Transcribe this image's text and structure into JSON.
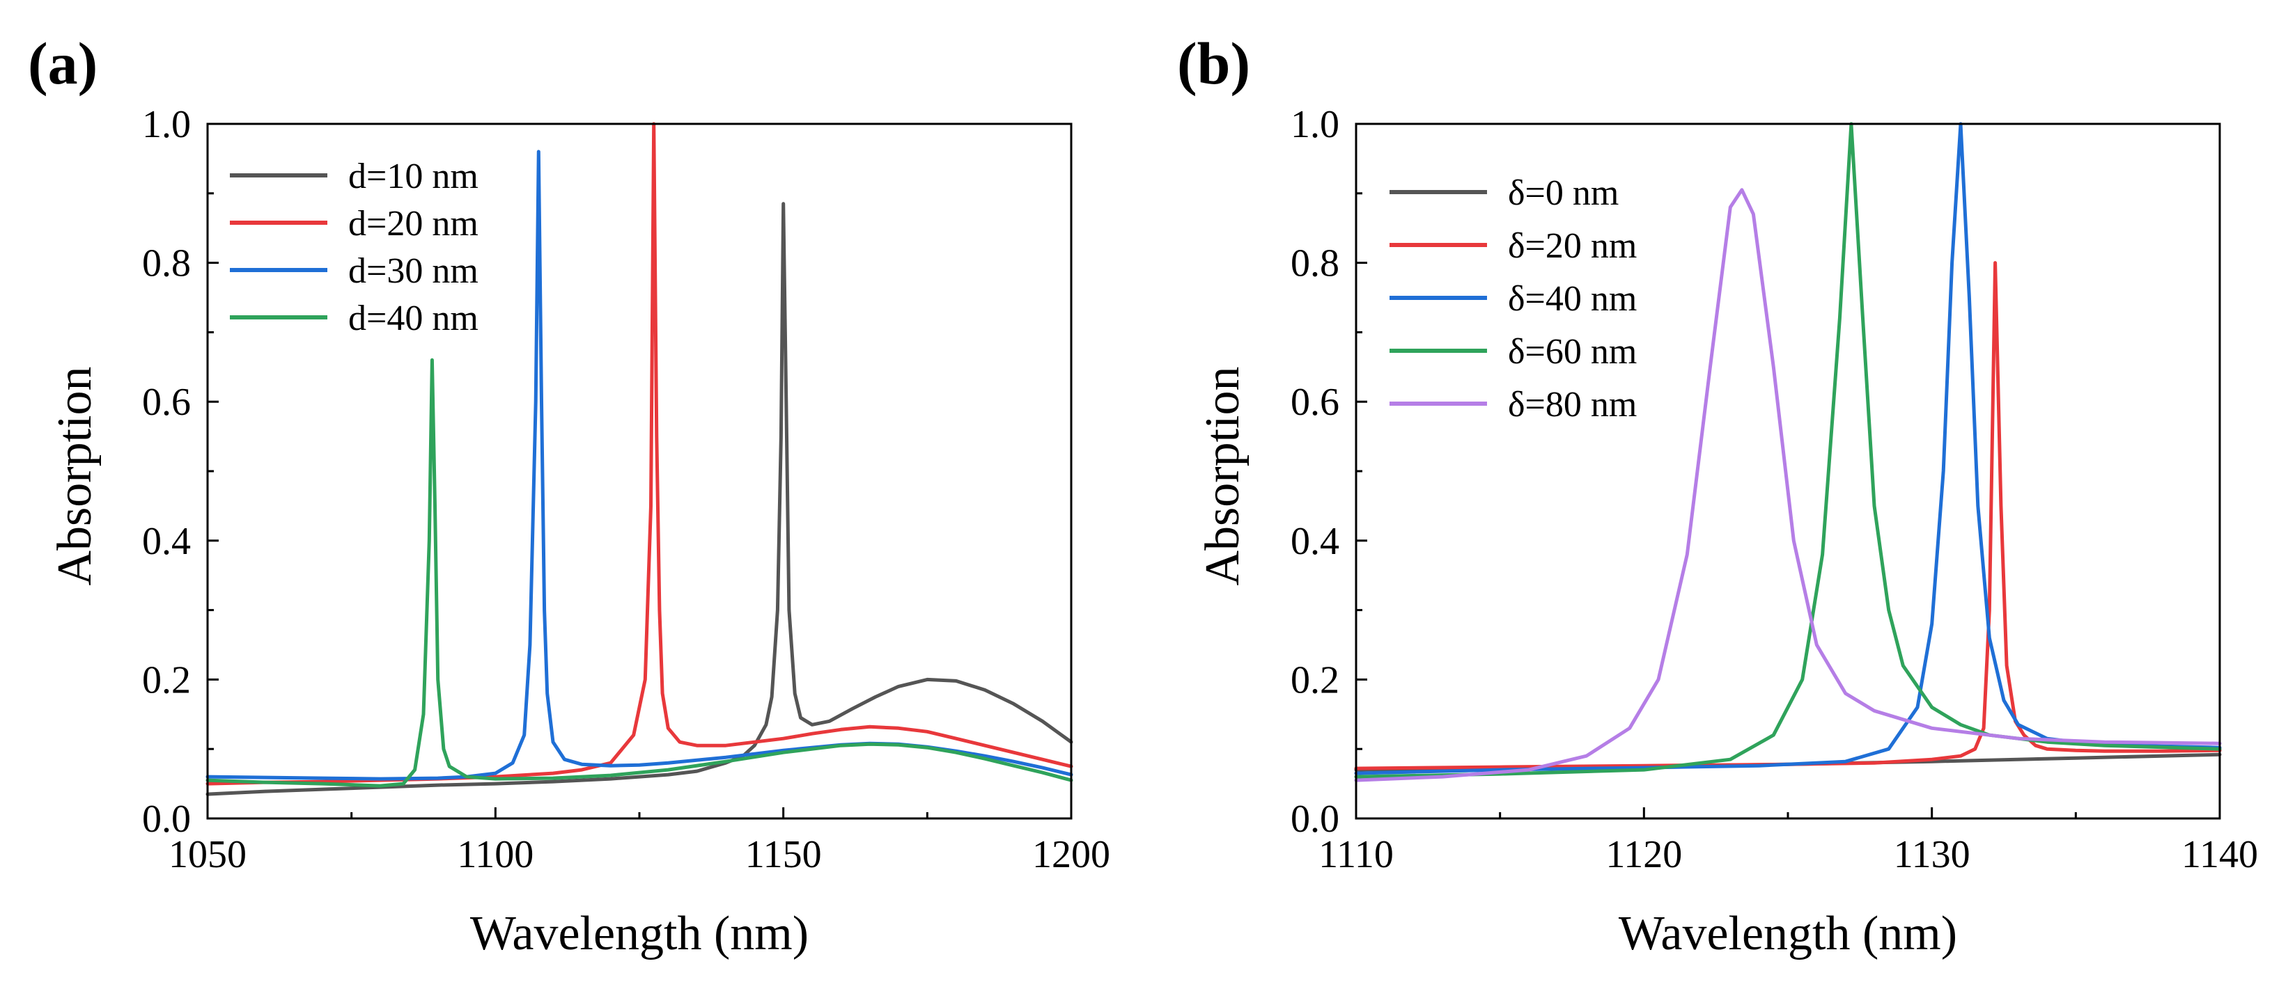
{
  "chart_data": [
    {
      "type": "line",
      "panel_label": "(a)",
      "xlabel": "Wavelength (nm)",
      "ylabel": "Absorption",
      "xlim": [
        1050,
        1200
      ],
      "ylim": [
        0,
        1.0
      ],
      "xticks": [
        "1050",
        "1100",
        "1150",
        "1200"
      ],
      "yticks": [
        "0.0",
        "0.2",
        "0.4",
        "0.6",
        "0.8",
        "1.0"
      ],
      "legend_position": "top-left",
      "series": [
        {
          "name": "d=10 nm",
          "color": "#555555",
          "x": [
            1050,
            1060,
            1070,
            1080,
            1090,
            1100,
            1110,
            1120,
            1130,
            1135,
            1140,
            1143,
            1145,
            1147,
            1148,
            1149,
            1149.6,
            1150,
            1150.5,
            1151,
            1152,
            1153,
            1155,
            1158,
            1162,
            1166,
            1170,
            1175,
            1180,
            1185,
            1190,
            1195,
            1200
          ],
          "y": [
            0.035,
            0.039,
            0.042,
            0.045,
            0.048,
            0.05,
            0.053,
            0.057,
            0.063,
            0.068,
            0.08,
            0.09,
            0.105,
            0.135,
            0.175,
            0.3,
            0.55,
            0.885,
            0.6,
            0.3,
            0.18,
            0.145,
            0.135,
            0.14,
            0.158,
            0.175,
            0.19,
            0.2,
            0.198,
            0.185,
            0.165,
            0.14,
            0.11
          ]
        },
        {
          "name": "d=20 nm",
          "color": "#e8383b",
          "x": [
            1050,
            1060,
            1070,
            1080,
            1090,
            1100,
            1110,
            1115,
            1120,
            1124,
            1126,
            1127,
            1127.5,
            1128,
            1128.5,
            1129,
            1130,
            1132,
            1135,
            1140,
            1145,
            1150,
            1155,
            1160,
            1165,
            1170,
            1175,
            1180,
            1185,
            1190,
            1195,
            1200
          ],
          "y": [
            0.05,
            0.052,
            0.053,
            0.055,
            0.057,
            0.06,
            0.065,
            0.07,
            0.08,
            0.12,
            0.2,
            0.45,
            1.0,
            0.55,
            0.3,
            0.18,
            0.13,
            0.11,
            0.105,
            0.105,
            0.11,
            0.115,
            0.122,
            0.128,
            0.132,
            0.13,
            0.125,
            0.115,
            0.105,
            0.095,
            0.085,
            0.075
          ]
        },
        {
          "name": "d=30 nm",
          "color": "#1f6fd6",
          "x": [
            1050,
            1060,
            1070,
            1080,
            1090,
            1095,
            1100,
            1103,
            1105,
            1106,
            1107,
            1107.5,
            1108,
            1108.5,
            1109,
            1110,
            1112,
            1115,
            1120,
            1125,
            1130,
            1140,
            1150,
            1160,
            1165,
            1170,
            1175,
            1180,
            1185,
            1190,
            1195,
            1200
          ],
          "y": [
            0.06,
            0.059,
            0.058,
            0.057,
            0.058,
            0.06,
            0.065,
            0.08,
            0.12,
            0.25,
            0.6,
            0.96,
            0.6,
            0.3,
            0.18,
            0.11,
            0.085,
            0.078,
            0.076,
            0.077,
            0.08,
            0.088,
            0.098,
            0.106,
            0.108,
            0.107,
            0.103,
            0.097,
            0.09,
            0.082,
            0.073,
            0.063
          ]
        },
        {
          "name": "d=40 nm",
          "color": "#2fa35b",
          "x": [
            1050,
            1060,
            1070,
            1080,
            1084,
            1086,
            1087.5,
            1088.5,
            1089,
            1089.5,
            1090,
            1091,
            1092,
            1095,
            1100,
            1110,
            1120,
            1130,
            1140,
            1150,
            1160,
            1165,
            1170,
            1175,
            1180,
            1185,
            1190,
            1195,
            1200
          ],
          "y": [
            0.055,
            0.052,
            0.05,
            0.047,
            0.05,
            0.07,
            0.15,
            0.4,
            0.66,
            0.45,
            0.2,
            0.1,
            0.075,
            0.06,
            0.057,
            0.058,
            0.062,
            0.07,
            0.082,
            0.095,
            0.105,
            0.107,
            0.106,
            0.102,
            0.095,
            0.086,
            0.076,
            0.066,
            0.055
          ]
        }
      ]
    },
    {
      "type": "line",
      "panel_label": "(b)",
      "xlabel": "Wavelength (nm)",
      "ylabel": "Absorption",
      "xlim": [
        1110,
        1140
      ],
      "ylim": [
        0,
        1.0
      ],
      "xticks": [
        "1110",
        "1120",
        "1130",
        "1140"
      ],
      "yticks": [
        "0.0",
        "0.2",
        "0.4",
        "0.6",
        "0.8",
        "1.0"
      ],
      "legend_position": "top-left",
      "series": [
        {
          "name": "δ=0 nm",
          "color": "#555555",
          "x": [
            1110,
            1115,
            1120,
            1125,
            1130,
            1135,
            1140
          ],
          "y": [
            0.07,
            0.073,
            0.075,
            0.078,
            0.082,
            0.087,
            0.092
          ]
        },
        {
          "name": "δ=20 nm",
          "color": "#e8383b",
          "x": [
            1110,
            1115,
            1120,
            1125,
            1128,
            1130,
            1131,
            1131.5,
            1131.8,
            1132,
            1132.2,
            1132.4,
            1132.6,
            1132.9,
            1133.2,
            1133.6,
            1134,
            1135,
            1136,
            1138,
            1140
          ],
          "y": [
            0.072,
            0.074,
            0.076,
            0.078,
            0.08,
            0.085,
            0.09,
            0.1,
            0.13,
            0.3,
            0.8,
            0.45,
            0.22,
            0.14,
            0.12,
            0.105,
            0.1,
            0.098,
            0.097,
            0.097,
            0.098
          ]
        },
        {
          "name": "δ=40 nm",
          "color": "#1f6fd6",
          "x": [
            1110,
            1115,
            1120,
            1124,
            1127,
            1128.5,
            1129.5,
            1130,
            1130.4,
            1130.7,
            1131,
            1131.3,
            1131.6,
            1132,
            1132.5,
            1133,
            1134,
            1135,
            1137,
            1140
          ],
          "y": [
            0.065,
            0.07,
            0.073,
            0.076,
            0.082,
            0.1,
            0.16,
            0.28,
            0.5,
            0.8,
            1.0,
            0.75,
            0.45,
            0.26,
            0.17,
            0.135,
            0.115,
            0.11,
            0.105,
            0.102
          ]
        },
        {
          "name": "δ=60 nm",
          "color": "#2fa35b",
          "x": [
            1110,
            1115,
            1120,
            1123,
            1124.5,
            1125.5,
            1126.2,
            1126.8,
            1127.2,
            1127.6,
            1128,
            1128.5,
            1129,
            1130,
            1131,
            1132,
            1134,
            1136,
            1140
          ],
          "y": [
            0.06,
            0.064,
            0.07,
            0.085,
            0.12,
            0.2,
            0.38,
            0.72,
            1.0,
            0.72,
            0.45,
            0.3,
            0.22,
            0.16,
            0.135,
            0.12,
            0.11,
            0.105,
            0.1
          ]
        },
        {
          "name": "δ=80 nm",
          "color": "#b57ee6",
          "x": [
            1110,
            1113,
            1116,
            1118,
            1119.5,
            1120.5,
            1121.5,
            1122.3,
            1123,
            1123.4,
            1123.8,
            1124.5,
            1125.2,
            1126,
            1127,
            1128,
            1130,
            1133,
            1136,
            1140
          ],
          "y": [
            0.055,
            0.06,
            0.07,
            0.09,
            0.13,
            0.2,
            0.38,
            0.65,
            0.88,
            0.905,
            0.87,
            0.65,
            0.4,
            0.25,
            0.18,
            0.155,
            0.13,
            0.115,
            0.11,
            0.108
          ]
        }
      ]
    }
  ]
}
